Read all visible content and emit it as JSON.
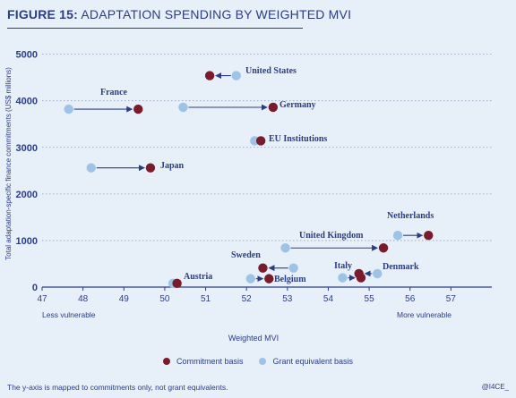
{
  "figure": {
    "number": "FIGURE 15:",
    "title": "ADAPTATION SPENDING BY WEIGHTED MVI",
    "footnote": "The y-axis is mapped to commitments only, not grant equivalents.",
    "credit": "@I4CE_"
  },
  "colors": {
    "background": "#e7eff8",
    "text": "#2c3d84",
    "commitment": "#7a1b2b",
    "grant": "#9dc4e6",
    "arrow": "#2c3d84",
    "grid": "#8a9cc9"
  },
  "chart_data": {
    "type": "scatter",
    "xlabel": "Weighted MVI",
    "ylabel": "Total adaptation-specific finance commitments (US$ millions)",
    "x_ticks": [
      47,
      48,
      49,
      50,
      51,
      52,
      53,
      54,
      55,
      56,
      57
    ],
    "y_ticks": [
      0,
      1000,
      2000,
      3000,
      4000,
      5000
    ],
    "xlim": [
      47,
      58
    ],
    "ylim": [
      0,
      5300
    ],
    "x_annotation_left": "Less vulnerable",
    "x_annotation_right": "More vulnerable",
    "grid": "horizontal dotted",
    "legend": [
      {
        "name": "Commitment basis",
        "key": "commitment"
      },
      {
        "name": "Grant equivalent basis",
        "key": "grant"
      }
    ],
    "points": [
      {
        "country": "United States",
        "commitment_x": 51.1,
        "grant_x": 51.75,
        "y": 4540
      },
      {
        "country": "France",
        "commitment_x": 49.35,
        "grant_x": 47.65,
        "y": 3820
      },
      {
        "country": "Germany",
        "commitment_x": 52.65,
        "grant_x": 50.45,
        "y": 3860
      },
      {
        "country": "EU Institutions",
        "commitment_x": 52.35,
        "grant_x": 52.2,
        "y": 3140
      },
      {
        "country": "Japan",
        "commitment_x": 49.65,
        "grant_x": 48.2,
        "y": 2560
      },
      {
        "country": "United Kingdom",
        "commitment_x": 55.35,
        "grant_x": 52.95,
        "y": 840
      },
      {
        "country": "Netherlands",
        "commitment_x": 56.45,
        "grant_x": 55.7,
        "y": 1110
      },
      {
        "country": "Sweden",
        "commitment_x": 52.4,
        "grant_x": 53.15,
        "y": 410
      },
      {
        "country": "Belgium",
        "commitment_x": 52.55,
        "grant_x": 52.1,
        "y": 180
      },
      {
        "country": "Austria",
        "commitment_x": 50.3,
        "grant_x": 50.2,
        "y": 80
      },
      {
        "country": "Italy",
        "commitment_x": 54.8,
        "grant_x": 54.35,
        "y": 200
      },
      {
        "country": "Denmark",
        "commitment_x": 54.75,
        "grant_x": 55.2,
        "y": 290
      }
    ]
  }
}
